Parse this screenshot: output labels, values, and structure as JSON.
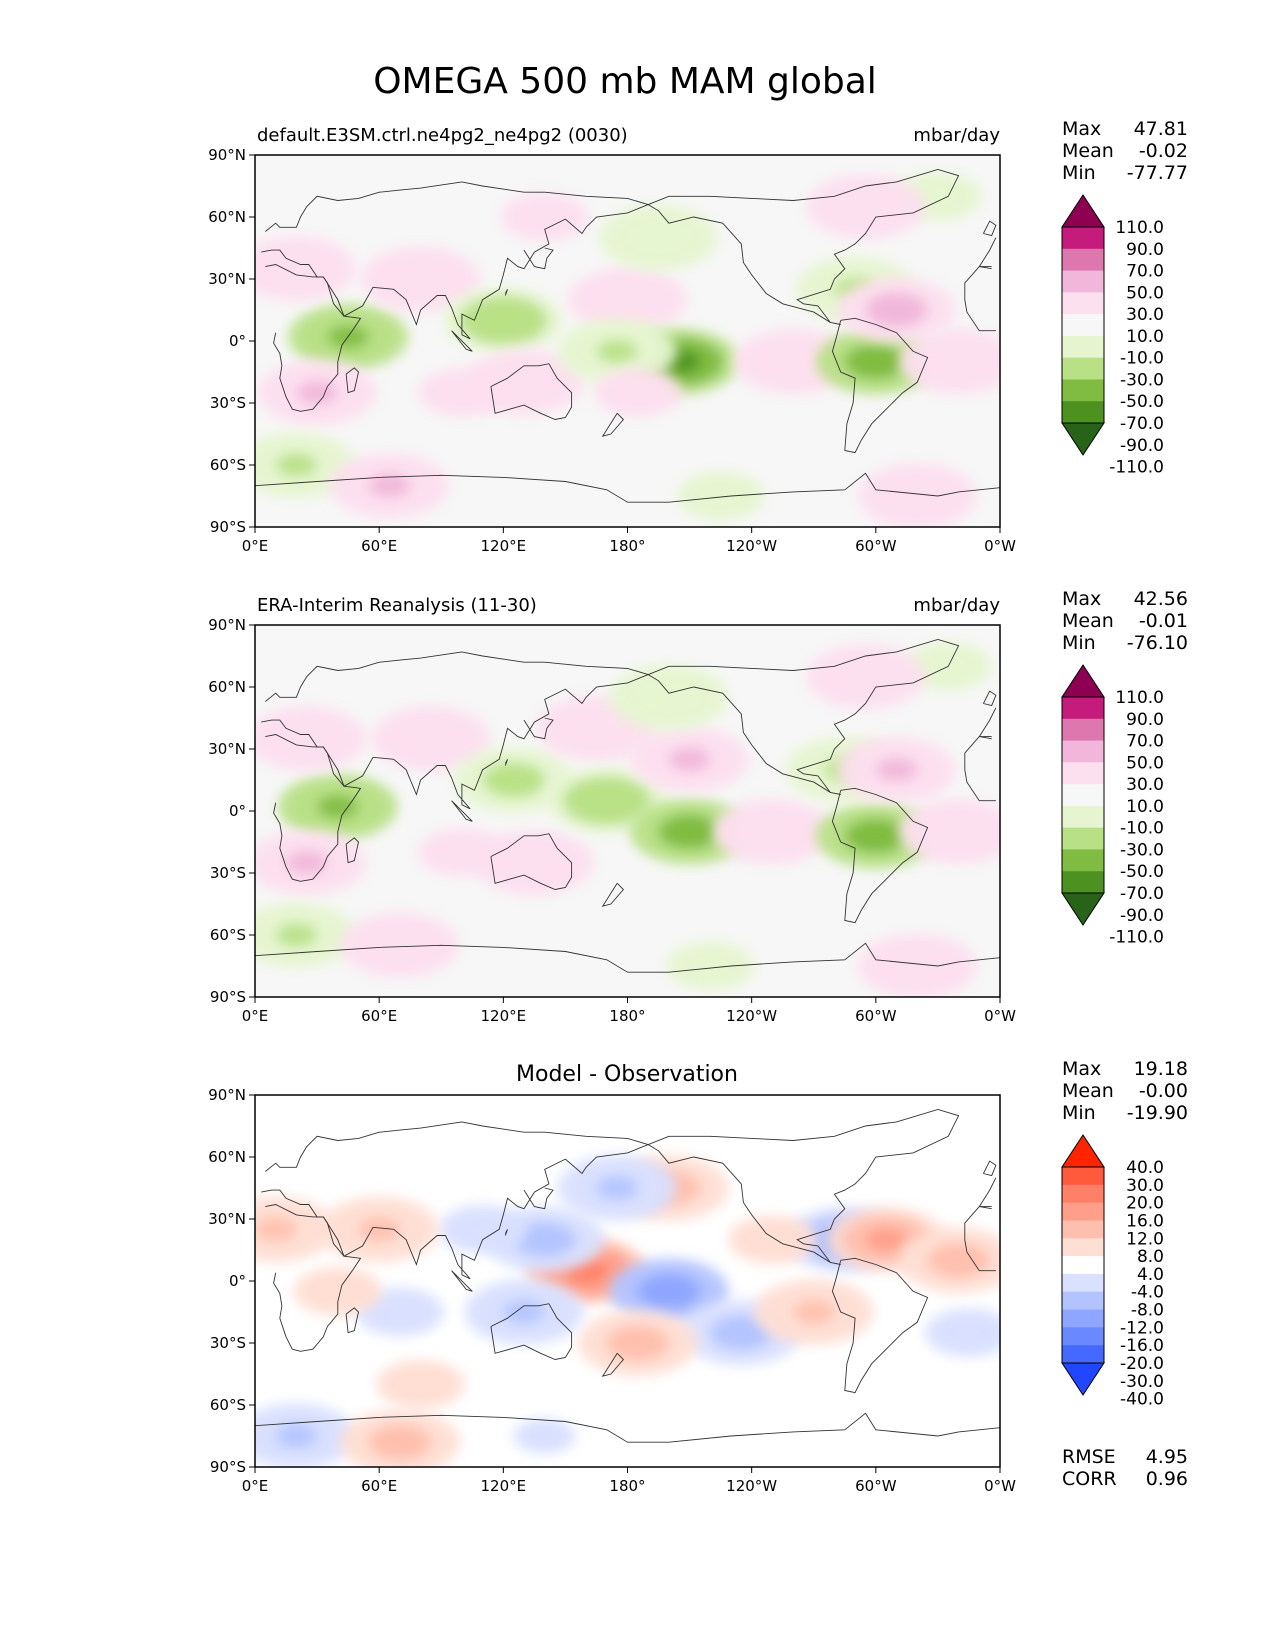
{
  "figure": {
    "title": "OMEGA 500 mb MAM global"
  },
  "chart_data": [
    {
      "type": "heatmap",
      "title": "default.E3SM.ctrl.ne4pg2_ne4pg2 (0030)",
      "units": "mbar/day",
      "xticks": [
        "0°E",
        "60°E",
        "120°E",
        "180°",
        "120°W",
        "60°W",
        "0°W"
      ],
      "yticks": [
        "90°N",
        "60°N",
        "30°N",
        "0°",
        "30°S",
        "60°S",
        "90°S"
      ],
      "xlim": [
        0,
        360
      ],
      "ylim": [
        -90,
        90
      ],
      "stats": {
        "labels": [
          "Max",
          "Mean",
          "Min"
        ],
        "values": [
          "47.81",
          "-0.02",
          "-77.77"
        ]
      },
      "colorbar": {
        "levels": [
          "110.0",
          "90.0",
          "70.0",
          "50.0",
          "30.0",
          "10.0",
          "-10.0",
          "-30.0",
          "-50.0",
          "-70.0",
          "-90.0",
          "-110.0"
        ],
        "colors": [
          "#8e0152",
          "#c51b7d",
          "#de77ae",
          "#f1b6da",
          "#fde0ef",
          "#f7f7f7",
          "#e6f5d0",
          "#b8e186",
          "#7fbc41",
          "#4d9221",
          "#276419"
        ]
      },
      "blobs": [
        {
          "lon": 45,
          "lat": 2,
          "value": -55
        },
        {
          "lon": 30,
          "lat": -25,
          "value": 30
        },
        {
          "lon": 20,
          "lat": 35,
          "value": 20
        },
        {
          "lon": 80,
          "lat": 30,
          "value": 25
        },
        {
          "lon": 120,
          "lat": 10,
          "value": -40
        },
        {
          "lon": 100,
          "lat": -25,
          "value": 15
        },
        {
          "lon": 130,
          "lat": -20,
          "value": 20
        },
        {
          "lon": 140,
          "lat": 60,
          "value": 15
        },
        {
          "lon": 180,
          "lat": 20,
          "value": 20
        },
        {
          "lon": 205,
          "lat": -10,
          "value": -70
        },
        {
          "lon": 175,
          "lat": -5,
          "value": -30
        },
        {
          "lon": 185,
          "lat": -25,
          "value": 15
        },
        {
          "lon": 195,
          "lat": 50,
          "value": -25
        },
        {
          "lon": 260,
          "lat": -10,
          "value": 25
        },
        {
          "lon": 300,
          "lat": -10,
          "value": -60
        },
        {
          "lon": 290,
          "lat": 25,
          "value": -30
        },
        {
          "lon": 310,
          "lat": 15,
          "value": 35
        },
        {
          "lon": 340,
          "lat": -10,
          "value": 20
        },
        {
          "lon": 20,
          "lat": -60,
          "value": -30
        },
        {
          "lon": 65,
          "lat": -70,
          "value": 30
        },
        {
          "lon": 225,
          "lat": -75,
          "value": -15
        },
        {
          "lon": 320,
          "lat": -75,
          "value": 20
        },
        {
          "lon": 330,
          "lat": 70,
          "value": -15
        },
        {
          "lon": 295,
          "lat": 65,
          "value": 20
        }
      ]
    },
    {
      "type": "heatmap",
      "title": "ERA-Interim Reanalysis (11-30)",
      "units": "mbar/day",
      "xticks": [
        "0°E",
        "60°E",
        "120°E",
        "180°",
        "120°W",
        "60°W",
        "0°W"
      ],
      "yticks": [
        "90°N",
        "60°N",
        "30°N",
        "0°",
        "30°S",
        "60°S",
        "90°S"
      ],
      "xlim": [
        0,
        360
      ],
      "ylim": [
        -90,
        90
      ],
      "stats": {
        "labels": [
          "Max",
          "Mean",
          "Min"
        ],
        "values": [
          "42.56",
          "-0.01",
          "-76.10"
        ]
      },
      "colorbar": {
        "levels": [
          "110.0",
          "90.0",
          "70.0",
          "50.0",
          "30.0",
          "10.0",
          "-10.0",
          "-30.0",
          "-50.0",
          "-70.0",
          "-90.0",
          "-110.0"
        ],
        "colors": [
          "#8e0152",
          "#c51b7d",
          "#de77ae",
          "#f1b6da",
          "#fde0ef",
          "#f7f7f7",
          "#e6f5d0",
          "#b8e186",
          "#7fbc41",
          "#4d9221",
          "#276419"
        ]
      },
      "blobs": [
        {
          "lon": 40,
          "lat": 2,
          "value": -55
        },
        {
          "lon": 25,
          "lat": -25,
          "value": 30
        },
        {
          "lon": 25,
          "lat": 35,
          "value": 20
        },
        {
          "lon": 85,
          "lat": 35,
          "value": 20
        },
        {
          "lon": 125,
          "lat": 15,
          "value": -35
        },
        {
          "lon": 100,
          "lat": -20,
          "value": 15
        },
        {
          "lon": 135,
          "lat": -25,
          "value": 20
        },
        {
          "lon": 165,
          "lat": 40,
          "value": 20
        },
        {
          "lon": 170,
          "lat": 5,
          "value": -40
        },
        {
          "lon": 210,
          "lat": -10,
          "value": -60
        },
        {
          "lon": 210,
          "lat": 25,
          "value": 30
        },
        {
          "lon": 200,
          "lat": 55,
          "value": -20
        },
        {
          "lon": 250,
          "lat": -10,
          "value": 20
        },
        {
          "lon": 300,
          "lat": -12,
          "value": -60
        },
        {
          "lon": 285,
          "lat": 20,
          "value": -30
        },
        {
          "lon": 310,
          "lat": 20,
          "value": 30
        },
        {
          "lon": 340,
          "lat": -10,
          "value": 20
        },
        {
          "lon": 20,
          "lat": -60,
          "value": -30
        },
        {
          "lon": 70,
          "lat": -65,
          "value": 25
        },
        {
          "lon": 220,
          "lat": -75,
          "value": -15
        },
        {
          "lon": 320,
          "lat": -75,
          "value": 20
        },
        {
          "lon": 335,
          "lat": 70,
          "value": -15
        },
        {
          "lon": 295,
          "lat": 65,
          "value": 25
        }
      ]
    },
    {
      "type": "heatmap",
      "title": "Model - Observation",
      "units": "",
      "xticks": [
        "0°E",
        "60°E",
        "120°E",
        "180°",
        "120°W",
        "60°W",
        "0°W"
      ],
      "yticks": [
        "90°N",
        "60°N",
        "30°N",
        "0°",
        "30°S",
        "60°S",
        "90°S"
      ],
      "xlim": [
        0,
        360
      ],
      "ylim": [
        -90,
        90
      ],
      "stats": {
        "labels": [
          "Max",
          "Mean",
          "Min"
        ],
        "values": [
          "19.18",
          "-0.00",
          "-19.90"
        ]
      },
      "metrics": {
        "labels": [
          "RMSE",
          "CORR"
        ],
        "values": [
          "4.95",
          "0.96"
        ]
      },
      "colorbar": {
        "levels": [
          "40.0",
          "30.0",
          "20.0",
          "16.0",
          "12.0",
          "8.0",
          "4.0",
          "-4.0",
          "-8.0",
          "-12.0",
          "-16.0",
          "-20.0",
          "-30.0",
          "-40.0"
        ],
        "colors": [
          "#ff2400",
          "#ff5a3c",
          "#ff8066",
          "#ff9e89",
          "#ffbfae",
          "#ffded4",
          "#ffffff",
          "#d9e1ff",
          "#b3c3ff",
          "#8ea6ff",
          "#6a88ff",
          "#4568ff",
          "#2146ff"
        ]
      },
      "blobs": [
        {
          "lon": 160,
          "lat": 5,
          "value": 16
        },
        {
          "lon": 200,
          "lat": -5,
          "value": -14
        },
        {
          "lon": 140,
          "lat": 20,
          "value": -10
        },
        {
          "lon": 110,
          "lat": 25,
          "value": -6
        },
        {
          "lon": 200,
          "lat": 45,
          "value": 10
        },
        {
          "lon": 235,
          "lat": -25,
          "value": -9
        },
        {
          "lon": 185,
          "lat": -30,
          "value": 10
        },
        {
          "lon": 270,
          "lat": -15,
          "value": 8
        },
        {
          "lon": 285,
          "lat": 20,
          "value": -12
        },
        {
          "lon": 305,
          "lat": 20,
          "value": 12
        },
        {
          "lon": 340,
          "lat": 10,
          "value": 9
        },
        {
          "lon": 60,
          "lat": 25,
          "value": 8
        },
        {
          "lon": 70,
          "lat": -15,
          "value": -6
        },
        {
          "lon": 40,
          "lat": -5,
          "value": 6
        },
        {
          "lon": 130,
          "lat": -15,
          "value": -8
        },
        {
          "lon": 10,
          "lat": 25,
          "value": 8
        },
        {
          "lon": 175,
          "lat": 45,
          "value": -8
        },
        {
          "lon": 250,
          "lat": 20,
          "value": 6
        },
        {
          "lon": 80,
          "lat": -50,
          "value": 6
        },
        {
          "lon": 20,
          "lat": -75,
          "value": -8
        },
        {
          "lon": 70,
          "lat": -78,
          "value": 10
        },
        {
          "lon": 140,
          "lat": -75,
          "value": -5
        },
        {
          "lon": 345,
          "lat": -25,
          "value": -6
        }
      ]
    }
  ]
}
